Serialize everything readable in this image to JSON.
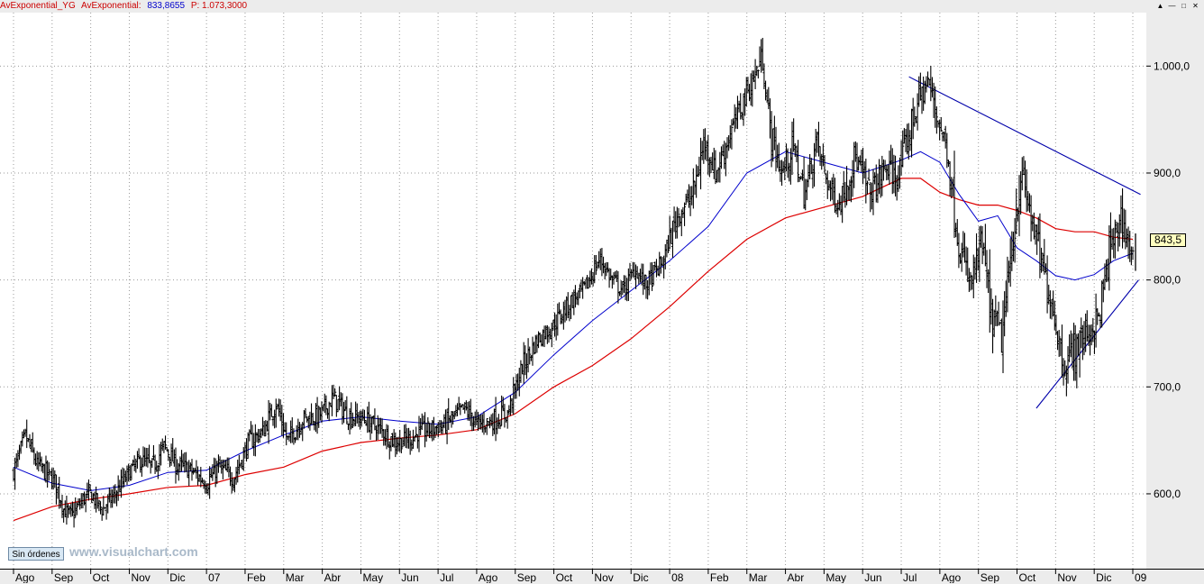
{
  "header": {
    "indicator_1": "AvExponential_YG",
    "indicator_2": "AvExponential:",
    "indicator_2_value": "833,8655",
    "price_label": "P: 1.073,3000"
  },
  "window_buttons": {
    "minimize": "▲",
    "restore": "—",
    "maximize": "□",
    "close": "✕"
  },
  "orders_button": "Sin órdenes",
  "watermark": "www.visualchart.com",
  "last_price_tag": "843,5",
  "colors": {
    "ema_fast": "#0000cc",
    "ema_slow": "#dd0000",
    "trendline": "#0000aa",
    "bars": "#000000"
  },
  "chart_data": {
    "type": "line",
    "title": "",
    "subtitle": "",
    "xlabel": "",
    "ylabel": "",
    "grid": true,
    "legend": "top-left",
    "ylim": [
      530,
      1050
    ],
    "y_ticks": [
      {
        "value": 600,
        "label": "600,0"
      },
      {
        "value": 700,
        "label": "700,0"
      },
      {
        "value": 800,
        "label": "800,0"
      },
      {
        "value": 900,
        "label": "900,0"
      },
      {
        "value": 1000,
        "label": "1.000,0"
      }
    ],
    "x_ticks": [
      {
        "t": 0,
        "label": "Ago"
      },
      {
        "t": 1,
        "label": "Sep"
      },
      {
        "t": 2,
        "label": "Oct"
      },
      {
        "t": 3,
        "label": "Nov"
      },
      {
        "t": 4,
        "label": "Dic"
      },
      {
        "t": 5,
        "label": "07"
      },
      {
        "t": 6,
        "label": "Feb"
      },
      {
        "t": 7,
        "label": "Mar"
      },
      {
        "t": 8,
        "label": "Abr"
      },
      {
        "t": 9,
        "label": "May"
      },
      {
        "t": 10,
        "label": "Jun"
      },
      {
        "t": 11,
        "label": "Jul"
      },
      {
        "t": 12,
        "label": "Ago"
      },
      {
        "t": 13,
        "label": "Sep"
      },
      {
        "t": 14,
        "label": "Oct"
      },
      {
        "t": 15,
        "label": "Nov"
      },
      {
        "t": 16,
        "label": "Dic"
      },
      {
        "t": 17,
        "label": "08"
      },
      {
        "t": 18,
        "label": "Feb"
      },
      {
        "t": 19,
        "label": "Mar"
      },
      {
        "t": 20,
        "label": "Abr"
      },
      {
        "t": 21,
        "label": "May"
      },
      {
        "t": 22,
        "label": "Jun"
      },
      {
        "t": 23,
        "label": "Jul"
      },
      {
        "t": 24,
        "label": "Ago"
      },
      {
        "t": 25,
        "label": "Sep"
      },
      {
        "t": 26,
        "label": "Oct"
      },
      {
        "t": 27,
        "label": "Nov"
      },
      {
        "t": 28,
        "label": "Dic"
      },
      {
        "t": 29,
        "label": "09"
      }
    ],
    "x_range": [
      -0.35,
      29.35
    ],
    "price_series": {
      "name": "",
      "x": [
        0,
        0.3,
        0.6,
        0.9,
        1.1,
        1.3,
        1.5,
        1.8,
        2.0,
        2.3,
        2.6,
        3.0,
        3.3,
        3.6,
        3.9,
        4.2,
        4.6,
        5.0,
        5.3,
        5.7,
        6.1,
        6.5,
        6.8,
        7.1,
        7.5,
        7.9,
        8.3,
        8.7,
        9.1,
        9.5,
        9.9,
        10.3,
        10.7,
        11.1,
        11.4,
        11.7,
        12.0,
        12.4,
        12.8,
        13.2,
        13.6,
        14.0,
        14.4,
        14.8,
        15.2,
        15.5,
        15.8,
        16.1,
        16.4,
        16.8,
        17.2,
        17.6,
        17.9,
        18.2,
        18.6,
        19.0,
        19.2,
        19.4,
        19.6,
        19.9,
        20.2,
        20.5,
        20.8,
        21.1,
        21.4,
        21.8,
        22.2,
        22.6,
        22.9,
        23.2,
        23.4,
        23.7,
        24.0,
        24.2,
        24.5,
        24.8,
        25.1,
        25.3,
        25.6,
        25.9,
        26.1,
        26.3,
        26.6,
        26.9,
        27.2,
        27.5,
        27.8,
        28.1,
        28.4,
        28.7,
        29.0
      ],
      "close": [
        620,
        655,
        628,
        618,
        610,
        585,
        578,
        595,
        600,
        585,
        598,
        620,
        632,
        625,
        645,
        628,
        622,
        610,
        625,
        615,
        648,
        660,
        685,
        650,
        670,
        672,
        690,
        672,
        670,
        660,
        648,
        652,
        660,
        663,
        672,
        680,
        665,
        668,
        675,
        720,
        745,
        758,
        778,
        792,
        820,
        800,
        790,
        810,
        795,
        815,
        860,
        880,
        930,
        900,
        940,
        975,
        990,
        1010,
        940,
        900,
        925,
        880,
        930,
        890,
        870,
        915,
        880,
        905,
        895,
        935,
        965,
        985,
        945,
        920,
        830,
        795,
        835,
        770,
        745,
        840,
        900,
        870,
        820,
        780,
        720,
        735,
        750,
        760,
        825,
        860,
        820
      ]
    },
    "ema_fast": {
      "name": "AvExponential",
      "x": [
        0,
        1,
        2,
        3,
        4,
        5,
        6,
        7,
        8,
        9,
        10,
        11,
        12,
        13,
        14,
        15,
        16,
        17,
        18,
        19,
        20,
        21,
        22,
        23,
        23.5,
        24,
        24.5,
        25,
        25.5,
        26,
        26.5,
        27,
        27.5,
        28,
        28.5,
        29
      ],
      "values": [
        625,
        610,
        603,
        608,
        620,
        622,
        640,
        655,
        668,
        672,
        668,
        665,
        672,
        695,
        730,
        762,
        790,
        818,
        850,
        900,
        920,
        910,
        900,
        912,
        920,
        910,
        880,
        855,
        860,
        830,
        818,
        804,
        800,
        805,
        818,
        825
      ]
    },
    "ema_slow": {
      "name": "AvExponential_YG",
      "x": [
        0,
        1,
        2,
        3,
        4,
        5,
        6,
        7,
        8,
        9,
        10,
        11,
        12,
        13,
        14,
        15,
        16,
        17,
        18,
        19,
        20,
        21,
        22,
        23,
        23.5,
        24,
        24.5,
        25,
        25.5,
        26,
        26.5,
        27,
        27.5,
        28,
        28.5,
        29
      ],
      "values": [
        575,
        588,
        595,
        600,
        606,
        608,
        618,
        625,
        640,
        648,
        652,
        655,
        660,
        675,
        700,
        720,
        745,
        775,
        808,
        838,
        858,
        868,
        878,
        895,
        895,
        882,
        875,
        870,
        870,
        865,
        858,
        848,
        845,
        845,
        840,
        838
      ]
    },
    "trendlines": [
      {
        "x": [
          23.2,
          29.2
        ],
        "values": [
          990,
          880
        ]
      },
      {
        "x": [
          26.5,
          29.15
        ],
        "values": [
          680,
          800
        ]
      }
    ],
    "last_value": 843.5
  }
}
